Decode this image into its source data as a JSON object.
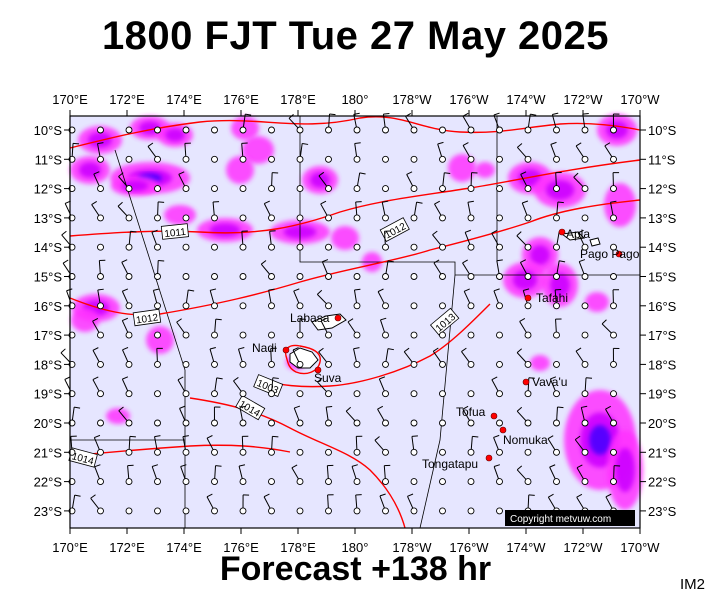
{
  "header": {
    "title": "1800 FJT Tue 27 May 2025"
  },
  "footer": {
    "forecast_label": "Forecast +138 hr",
    "product_code": "IM2"
  },
  "map": {
    "lon_labels": [
      "170°E",
      "172°E",
      "174°E",
      "176°E",
      "178°E",
      "180°",
      "178°W",
      "176°W",
      "174°W",
      "172°W",
      "170°W"
    ],
    "lat_labels": [
      "10°S",
      "11°S",
      "12°S",
      "13°S",
      "14°S",
      "15°S",
      "16°S",
      "17°S",
      "18°S",
      "19°S",
      "20°S",
      "21°S",
      "22°S",
      "23°S"
    ],
    "places": [
      {
        "name": "Apia"
      },
      {
        "name": "Pago Pago"
      },
      {
        "name": "Tafahi"
      },
      {
        "name": "Labasa"
      },
      {
        "name": "Nadi"
      },
      {
        "name": "Suva"
      },
      {
        "name": "Vava'u"
      },
      {
        "name": "Tofua"
      },
      {
        "name": "Nomuka"
      },
      {
        "name": "Tongatapu"
      }
    ],
    "isobar_labels": [
      {
        "text": "1011"
      },
      {
        "text": "1012"
      },
      {
        "text": "1012"
      },
      {
        "text": "1013"
      },
      {
        "text": "1003"
      },
      {
        "text": "1014"
      },
      {
        "text": "1014"
      }
    ],
    "copyright": "Copyright metvuw.com",
    "colors": {
      "background": "#e6e6ff",
      "rain_light": "#ff33ff",
      "rain_mid": "#cc00ff",
      "rain_heavy": "#4b00ff",
      "isobar": "#ff0000",
      "place_dot": "#ff0000"
    }
  }
}
